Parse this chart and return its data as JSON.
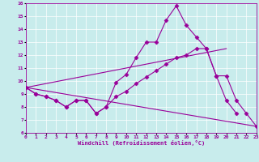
{
  "bg_color": "#c8ecec",
  "grid_color": "#ffffff",
  "line_color": "#990099",
  "xlabel": "Windchill (Refroidissement éolien,°C)",
  "xlim": [
    0,
    23
  ],
  "ylim": [
    6,
    16
  ],
  "xticks": [
    0,
    1,
    2,
    3,
    4,
    5,
    6,
    7,
    8,
    9,
    10,
    11,
    12,
    13,
    14,
    15,
    16,
    17,
    18,
    19,
    20,
    21,
    22,
    23
  ],
  "yticks": [
    6,
    7,
    8,
    9,
    10,
    11,
    12,
    13,
    14,
    15,
    16
  ],
  "series": [
    {
      "x": [
        0,
        1,
        2,
        3,
        4,
        5,
        6,
        7,
        8,
        9,
        10,
        11,
        12,
        13,
        14,
        15,
        16,
        17,
        18,
        19,
        20,
        21
      ],
      "y": [
        9.5,
        9.0,
        8.8,
        8.5,
        8.0,
        8.5,
        8.5,
        7.5,
        8.0,
        9.9,
        10.5,
        11.8,
        13.0,
        13.0,
        14.7,
        15.8,
        14.3,
        13.4,
        12.5,
        10.4,
        8.5,
        7.5
      ],
      "marker": true
    },
    {
      "x": [
        0,
        1,
        2,
        3,
        4,
        5,
        6,
        7,
        8,
        9,
        10,
        11,
        12,
        13,
        14,
        15,
        16,
        17,
        18,
        19,
        20,
        21,
        22,
        23
      ],
      "y": [
        9.5,
        9.0,
        8.8,
        8.5,
        8.0,
        8.5,
        8.5,
        7.5,
        8.0,
        8.8,
        9.2,
        9.8,
        10.3,
        10.8,
        11.3,
        11.8,
        12.0,
        12.5,
        12.5,
        10.4,
        10.4,
        8.5,
        7.5,
        6.5
      ],
      "marker": true
    },
    {
      "x": [
        0,
        20
      ],
      "y": [
        9.5,
        12.5
      ],
      "marker": false
    },
    {
      "x": [
        0,
        23
      ],
      "y": [
        9.5,
        6.5
      ],
      "marker": false
    }
  ],
  "marker": "D",
  "markersize": 2.5,
  "linewidth": 0.8
}
